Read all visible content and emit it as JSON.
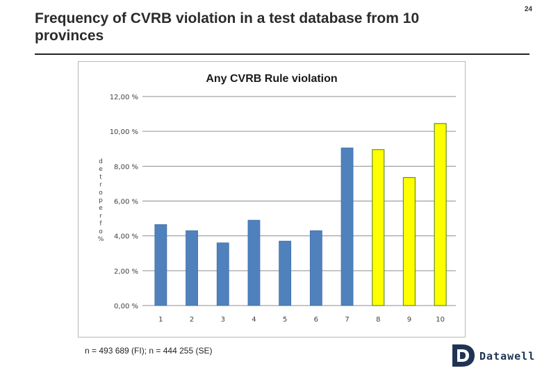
{
  "slide": {
    "title": "Frequency of CVRB violation in a test database from 10 provinces",
    "page_number": "24",
    "footnote": "n = 493 689 (FI); n = 444 255 (SE)"
  },
  "logo": {
    "name": "Datawell",
    "icon": "datawell-d-logo-icon",
    "color": "#1f3355"
  },
  "colors": {
    "blue_bar": "#4f81bd",
    "blue_bar_edge": "#3f6fa8",
    "yellow_bar": "#ffff00",
    "yellow_bar_edge": "#6b8e23",
    "grid": "#8c8c8c",
    "text": "#404040"
  },
  "chart_data": {
    "type": "bar",
    "title": "Any CVRB Rule violation",
    "xlabel": "",
    "ylabel": "% of reported",
    "categories": [
      "1",
      "2",
      "3",
      "4",
      "5",
      "6",
      "7",
      "8",
      "9",
      "10"
    ],
    "values": [
      4.65,
      4.3,
      3.6,
      4.9,
      3.7,
      4.3,
      9.05,
      8.95,
      7.35,
      10.45
    ],
    "highlight": [
      false,
      false,
      false,
      false,
      false,
      false,
      false,
      true,
      true,
      true
    ],
    "yticks": [
      "0,00 %",
      "2,00 %",
      "4,00 %",
      "6,00 %",
      "8,00 %",
      "10,00 %",
      "12,00 %"
    ],
    "ylim": [
      0,
      12
    ],
    "grid": true,
    "legend": "none"
  }
}
